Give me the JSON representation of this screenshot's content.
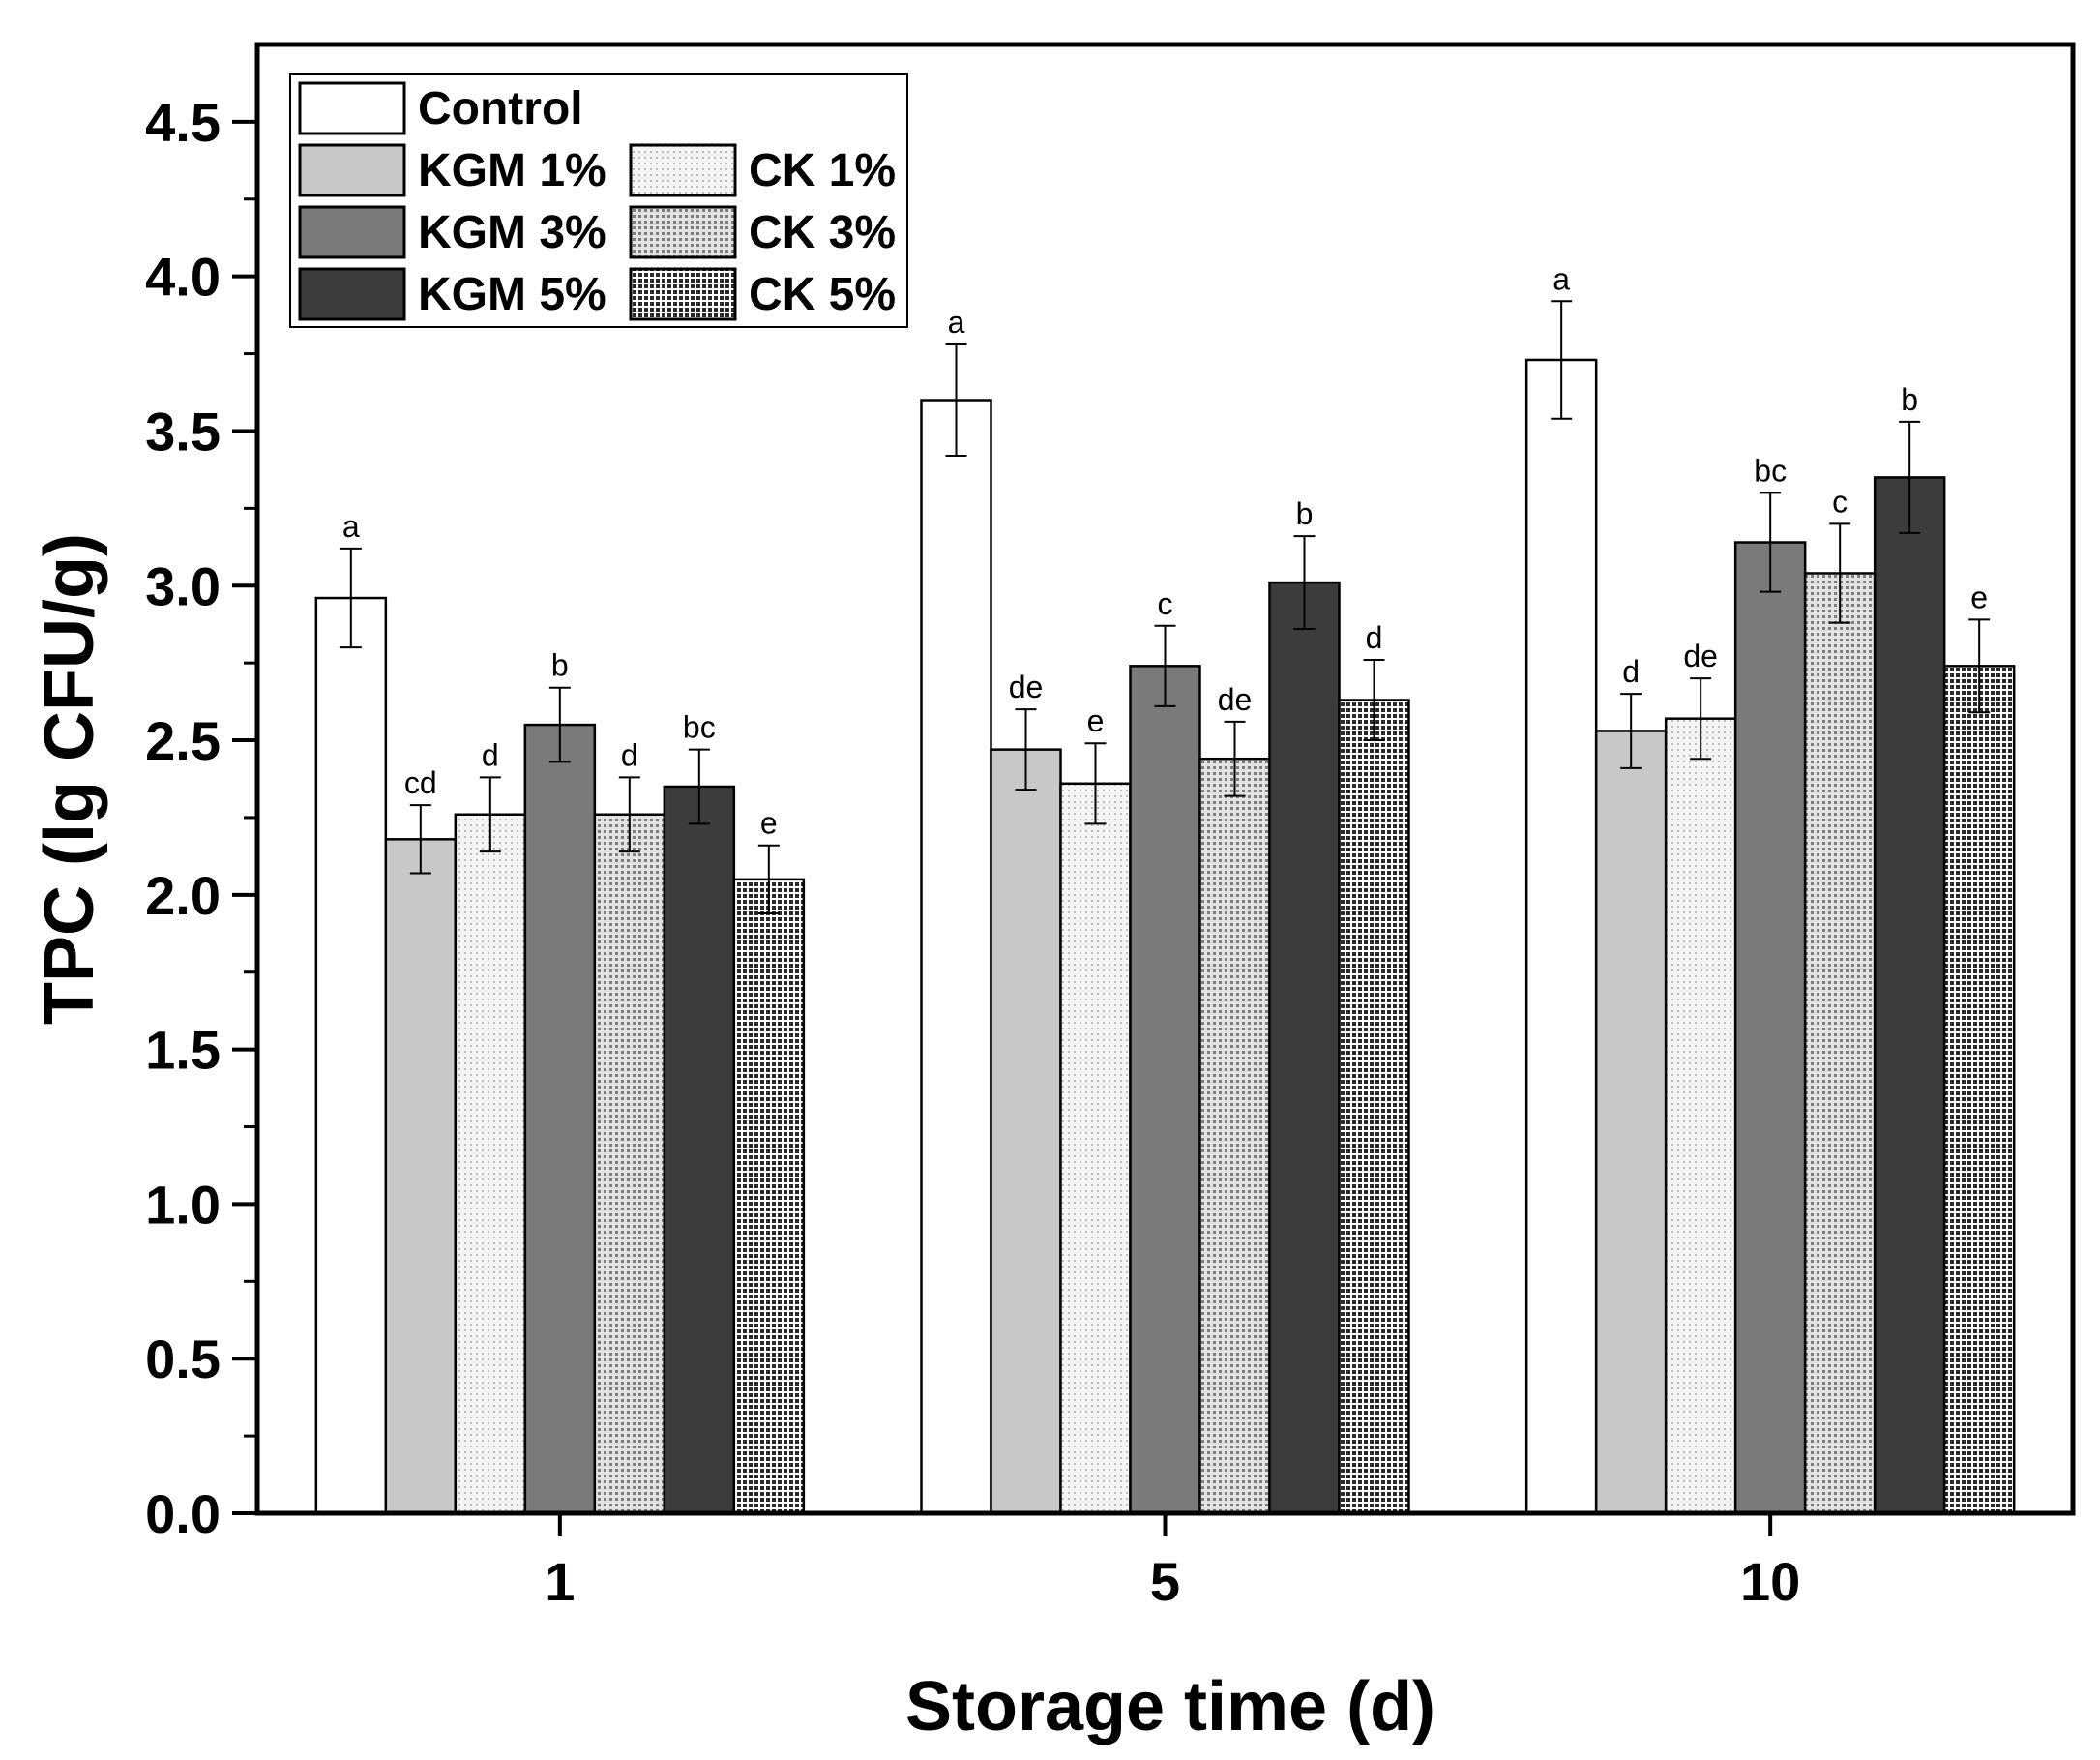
{
  "chart_data": {
    "type": "bar",
    "title": "",
    "xlabel": "Storage time (d)",
    "ylabel": "TPC (lg CFU/g)",
    "categories": [
      "1",
      "5",
      "10"
    ],
    "ylim": [
      0,
      4.75
    ],
    "yticks": [
      "0.0",
      "0.5",
      "1.0",
      "1.5",
      "2.0",
      "2.5",
      "3.0",
      "3.5",
      "4.0",
      "4.5"
    ],
    "legend_position": "top-left",
    "series": [
      {
        "name": "Control",
        "fill": "#ffffff",
        "pattern": "none",
        "values": [
          2.96,
          3.6,
          3.73
        ],
        "errors": [
          0.16,
          0.18,
          0.19
        ],
        "labels": [
          "a",
          "a",
          "a"
        ]
      },
      {
        "name": "KGM 1%",
        "fill": "#c8c8c8",
        "pattern": "none",
        "values": [
          2.18,
          2.47,
          2.53
        ],
        "errors": [
          0.11,
          0.13,
          0.12
        ],
        "labels": [
          "cd",
          "de",
          "d"
        ]
      },
      {
        "name": "CK 1%",
        "fill": "#f0f0f0",
        "pattern": "light",
        "values": [
          2.26,
          2.36,
          2.57
        ],
        "errors": [
          0.12,
          0.13,
          0.13
        ],
        "labels": [
          "d",
          "e",
          "de"
        ]
      },
      {
        "name": "KGM 3%",
        "fill": "#7a7a7a",
        "pattern": "none",
        "values": [
          2.55,
          2.74,
          3.14
        ],
        "errors": [
          0.12,
          0.13,
          0.16
        ],
        "labels": [
          "b",
          "c",
          "bc"
        ]
      },
      {
        "name": "CK 3%",
        "fill": "#d4d4d4",
        "pattern": "medium",
        "values": [
          2.26,
          2.44,
          3.04
        ],
        "errors": [
          0.12,
          0.12,
          0.16
        ],
        "labels": [
          "d",
          "de",
          "c"
        ]
      },
      {
        "name": "KGM 5%",
        "fill": "#3c3c3c",
        "pattern": "none",
        "values": [
          2.35,
          3.01,
          3.35
        ],
        "errors": [
          0.12,
          0.15,
          0.18
        ],
        "labels": [
          "bc",
          "b",
          "b"
        ]
      },
      {
        "name": "CK 5%",
        "fill": "#9a9a9a",
        "pattern": "dense",
        "values": [
          2.05,
          2.63,
          2.74
        ],
        "errors": [
          0.11,
          0.13,
          0.15
        ],
        "labels": [
          "e",
          "d",
          "e"
        ]
      }
    ],
    "legend_order": [
      0,
      1,
      2,
      3,
      4,
      5,
      6
    ]
  }
}
